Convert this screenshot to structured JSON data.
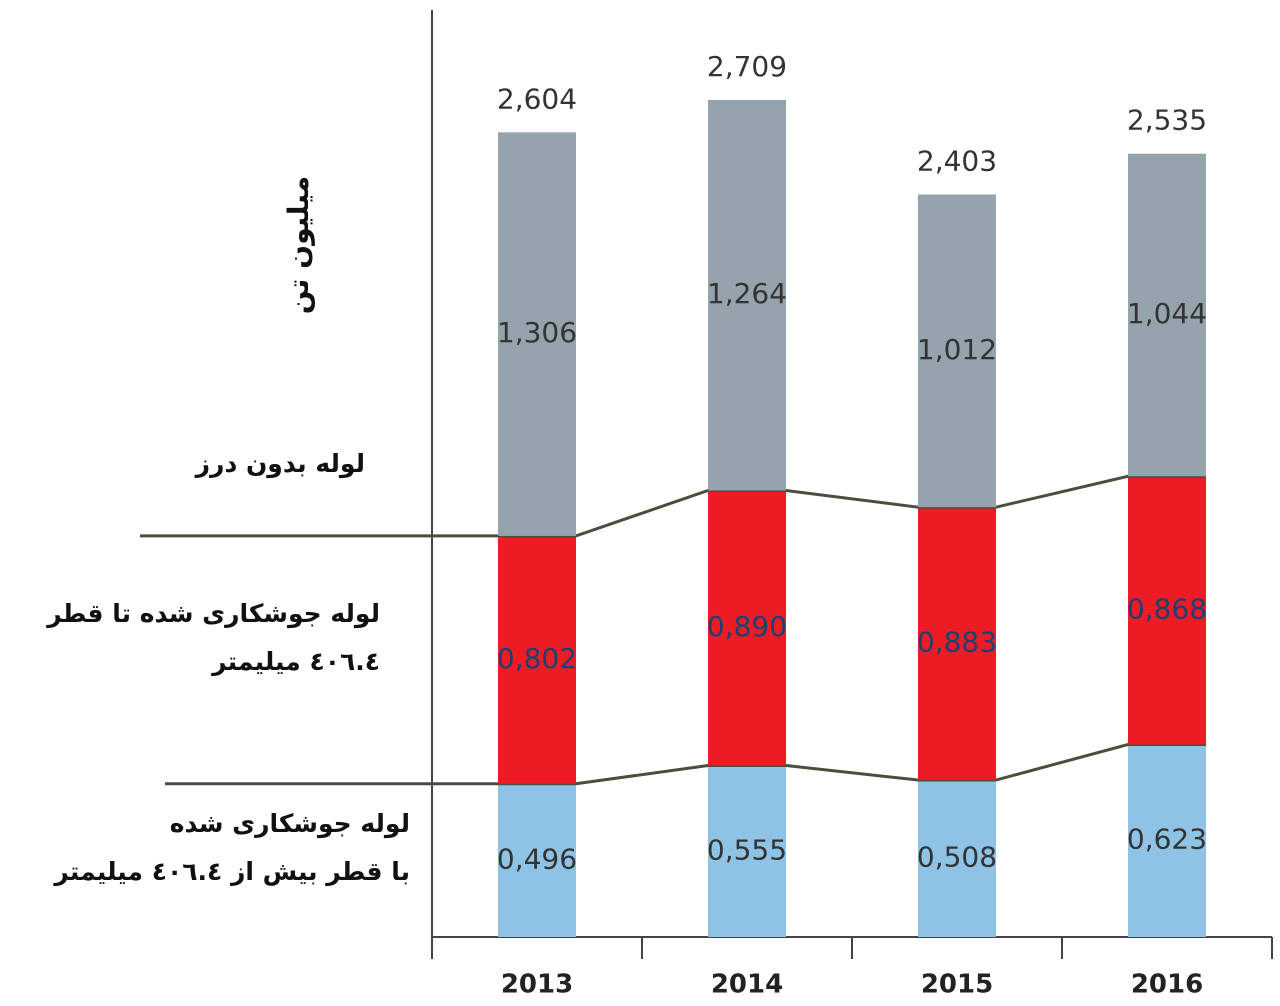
{
  "chart_data": {
    "type": "stacked_bar",
    "y_label": "میلیون تن",
    "categories": [
      "2013",
      "2014",
      "2015",
      "2016"
    ],
    "ylim": [
      0,
      3000
    ],
    "series": [
      {
        "name": "لوله جوشکاری شده\nبا قطر بیش از ٤٠٦.٤ میلیمتر",
        "color": "#8ec3e6",
        "values": [
          496,
          555,
          508,
          623
        ],
        "value_labels": [
          "0,496",
          "0,555",
          "0,508",
          "0,623"
        ],
        "label_color": "#333333"
      },
      {
        "name": "لوله جوشکاری شده تا قطر\n٤٠٦.٤ میلیمتر",
        "color": "#ed1c24",
        "values": [
          802,
          890,
          883,
          868
        ],
        "value_labels": [
          "0,802",
          "0,890",
          "0,883",
          "0,868"
        ],
        "label_color": "#1f3f73"
      },
      {
        "name": "لوله بدون درز",
        "color": "#95a3ad",
        "values": [
          1306,
          1264,
          1012,
          1044
        ],
        "value_labels": [
          "1,306",
          "1,264",
          "1,012",
          "1,044"
        ],
        "label_color": "#333333"
      }
    ],
    "totals": [
      2604,
      2709,
      2403,
      2535
    ],
    "total_labels": [
      "2,604",
      "2,709",
      "2,403",
      "2,535"
    ]
  }
}
